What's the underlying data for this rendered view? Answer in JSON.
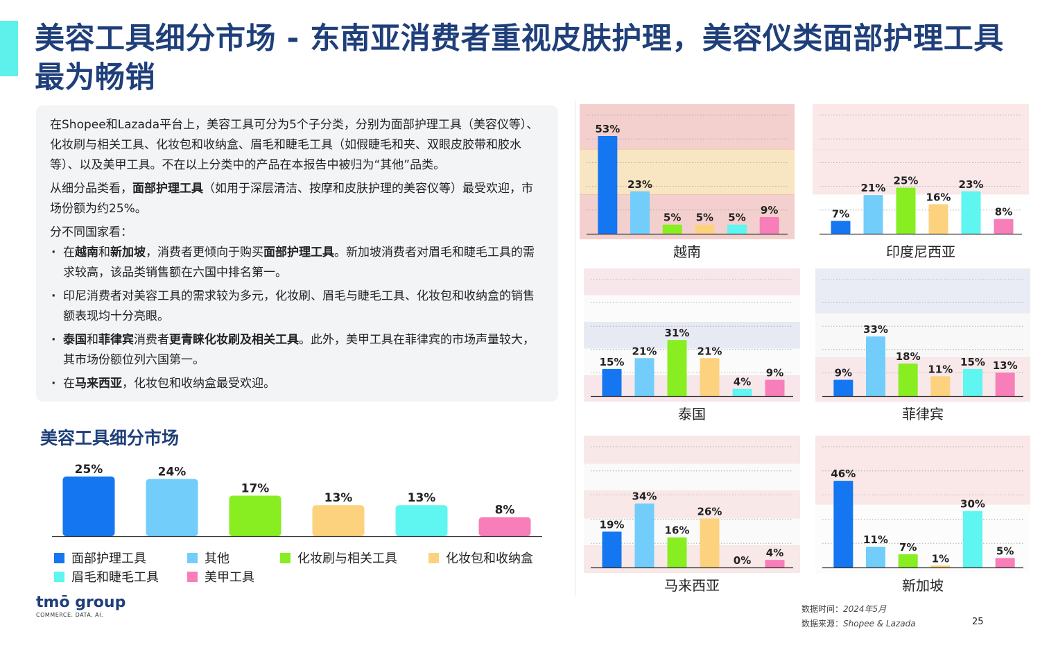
{
  "title": "美容工具细分市场 - 东南亚消费者重视皮肤护理，美容仪类面部护理工具最为畅销",
  "intro_paragraphs": [
    {
      "parts": [
        {
          "t": "在Shopee和Lazada平台上，美容工具可分为5个子分类，分别为面部护理工具（美容仪等）、化妆刷与相关工具、化妆包和收纳盒、眉毛和睫毛工具（如假睫毛和夹、双眼皮胶带和胶水等）、以及美甲工具。不在以上分类中的产品在本报告中被归为“其他”品类。"
        }
      ]
    },
    {
      "parts": [
        {
          "t": "从细分品类看，"
        },
        {
          "t": "面部护理工具",
          "b": true
        },
        {
          "t": "（如用于深层清洁、按摩和皮肤护理的美容仪等）最受欢迎，市场份额为约25%。"
        }
      ]
    },
    {
      "parts": [
        {
          "t": "分不同国家看："
        }
      ]
    }
  ],
  "bullets": [
    {
      "parts": [
        {
          "t": "在"
        },
        {
          "t": "越南",
          "b": true
        },
        {
          "t": "和"
        },
        {
          "t": "新加坡",
          "b": true
        },
        {
          "t": "，消费者更倾向于购买"
        },
        {
          "t": "面部护理工具",
          "b": true
        },
        {
          "t": "。新加坡消费者对眉毛和睫毛工具的需求较高，该品类销售额在六国中排名第一。"
        }
      ]
    },
    {
      "parts": [
        {
          "t": "印尼消费者对美容工具的需求较为多元，化妆刷、眉毛与睫毛工具、化妆包和收纳盒的销售额表现均十分亮眼。"
        }
      ]
    },
    {
      "parts": [
        {
          "t": "泰国",
          "b": true
        },
        {
          "t": "和"
        },
        {
          "t": "菲律宾",
          "b": true
        },
        {
          "t": "消费者"
        },
        {
          "t": "更青睐化妆刷及相关工具",
          "b": true
        },
        {
          "t": "。此外，美甲工具在菲律宾的市场声量较大，其市场份额位列六国第一。"
        }
      ]
    },
    {
      "parts": [
        {
          "t": "在"
        },
        {
          "t": "马来西亚",
          "b": true
        },
        {
          "t": "，化妆包和收纳盒最受欢迎。"
        }
      ]
    }
  ],
  "overall_section_title": "美容工具细分市场",
  "colors": {
    "facial": "#1476f0",
    "other": "#72cdfb",
    "brush": "#88ee22",
    "bag": "#fdd27e",
    "brow": "#5ff5f0",
    "nail": "#f77eb8",
    "title": "#1f3f7a",
    "accent": "#5ef0ea"
  },
  "legend": [
    {
      "label": "面部护理工具",
      "color": "#1476f0"
    },
    {
      "label": "其他",
      "color": "#72cdfb"
    },
    {
      "label": "化妆刷与相关工具",
      "color": "#88ee22"
    },
    {
      "label": "化妆包和收纳盒",
      "color": "#fdd27e"
    },
    {
      "label": "眉毛和睫毛工具",
      "color": "#5ff5f0"
    },
    {
      "label": "美甲工具",
      "color": "#f77eb8"
    }
  ],
  "chart_data": [
    {
      "type": "bar",
      "title": "美容工具细分市场",
      "categories": [
        "面部护理工具",
        "其他",
        "化妆刷与相关工具",
        "化妆包和收纳盒",
        "眉毛和睫毛工具",
        "美甲工具"
      ],
      "values": [
        25,
        24,
        17,
        13,
        13,
        8
      ],
      "labels": [
        "25%",
        "24%",
        "17%",
        "13%",
        "13%",
        "8%"
      ],
      "colors": [
        "#1476f0",
        "#72cdfb",
        "#88ee22",
        "#fdd27e",
        "#5ff5f0",
        "#f77eb8"
      ],
      "unit": "%"
    },
    {
      "type": "bar",
      "title": "越南",
      "categories": [
        "面部护理工具",
        "其他",
        "化妆刷与相关工具",
        "化妆包和收纳盒",
        "眉毛和睫毛工具",
        "美甲工具"
      ],
      "values": [
        53,
        23,
        5,
        5,
        5,
        9
      ],
      "labels": [
        "53%",
        "23%",
        "5%",
        "5%",
        "5%",
        "9%"
      ],
      "colors": [
        "#1476f0",
        "#72cdfb",
        "#88ee22",
        "#fdd27e",
        "#5ff5f0",
        "#f77eb8"
      ],
      "flag": [
        "#e9a9a4",
        "#f2d08e",
        "#e9a9a4"
      ]
    },
    {
      "type": "bar",
      "title": "印度尼西亚",
      "categories": [
        "面部护理工具",
        "其他",
        "化妆刷与相关工具",
        "化妆包和收纳盒",
        "眉毛和睫毛工具",
        "美甲工具"
      ],
      "values": [
        7,
        21,
        25,
        16,
        23,
        8
      ],
      "labels": [
        "7%",
        "21%",
        "25%",
        "16%",
        "23%",
        "8%"
      ],
      "colors": [
        "#1476f0",
        "#72cdfb",
        "#88ee22",
        "#fdd27e",
        "#5ff5f0",
        "#f77eb8"
      ],
      "flag": [
        "#f6d6d6",
        "#f6d6d6",
        "#ffffff"
      ]
    },
    {
      "type": "bar",
      "title": "泰国",
      "categories": [
        "面部护理工具",
        "其他",
        "化妆刷与相关工具",
        "化妆包和收纳盒",
        "眉毛和睫毛工具",
        "美甲工具"
      ],
      "values": [
        15,
        21,
        31,
        21,
        4,
        9
      ],
      "labels": [
        "15%",
        "21%",
        "31%",
        "21%",
        "4%",
        "9%"
      ],
      "colors": [
        "#1476f0",
        "#72cdfb",
        "#88ee22",
        "#fdd27e",
        "#5ff5f0",
        "#f77eb8"
      ],
      "flag": [
        "#f3d3d8",
        "#f7f7f7",
        "#d6d9ea",
        "#f7f7f7",
        "#f3d3d8"
      ]
    },
    {
      "type": "bar",
      "title": "菲律宾",
      "categories": [
        "面部护理工具",
        "其他",
        "化妆刷与相关工具",
        "化妆包和收纳盒",
        "眉毛和睫毛工具",
        "美甲工具"
      ],
      "values": [
        9,
        33,
        18,
        11,
        15,
        13
      ],
      "labels": [
        "9%",
        "33%",
        "18%",
        "11%",
        "15%",
        "13%"
      ],
      "colors": [
        "#1476f0",
        "#72cdfb",
        "#88ee22",
        "#fdd27e",
        "#5ff5f0",
        "#f77eb8"
      ],
      "flag": [
        "#d9dcec",
        "#f3f3f3",
        "#f2d5d8"
      ]
    },
    {
      "type": "bar",
      "title": "马来西亚",
      "categories": [
        "面部护理工具",
        "其他",
        "化妆刷与相关工具",
        "化妆包和收纳盒",
        "眉毛和睫毛工具",
        "美甲工具"
      ],
      "values": [
        19,
        34,
        16,
        26,
        0,
        4
      ],
      "labels": [
        "19%",
        "34%",
        "16%",
        "26%",
        "0%",
        "4%"
      ],
      "colors": [
        "#1476f0",
        "#72cdfb",
        "#88ee22",
        "#fdd27e",
        "#5ff5f0",
        "#f77eb8"
      ],
      "flag": [
        "#f3d6d6",
        "#f6f6f6",
        "#f3d6d6",
        "#f6f6f6",
        "#f3d6d6"
      ]
    },
    {
      "type": "bar",
      "title": "新加坡",
      "categories": [
        "面部护理工具",
        "其他",
        "化妆刷与相关工具",
        "化妆包和收纳盒",
        "眉毛和睫毛工具",
        "美甲工具"
      ],
      "values": [
        46,
        11,
        7,
        1,
        30,
        5
      ],
      "labels": [
        "46%",
        "11%",
        "7%",
        "1%",
        "30%",
        "5%"
      ],
      "colors": [
        "#1476f0",
        "#72cdfb",
        "#88ee22",
        "#fdd27e",
        "#5ff5f0",
        "#f77eb8"
      ],
      "flag": [
        "#f6d3d3",
        "#f9f9f9"
      ]
    }
  ],
  "footer": {
    "logo_text": "tmō group",
    "logo_tagline": "COMMERCE. DATA. AI.",
    "date_label": "数据时间：",
    "date_value": "2024年5月",
    "source_label": "数据来源：",
    "source_value": "Shopee & Lazada",
    "page_number": "25"
  }
}
